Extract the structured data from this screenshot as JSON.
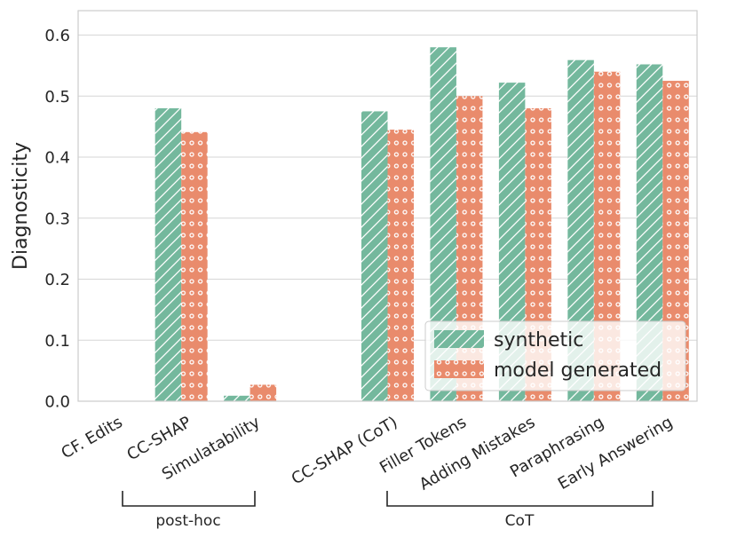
{
  "chart_data": {
    "type": "bar",
    "title": "",
    "xlabel": "",
    "ylabel": "Diagnosticity",
    "ylim": [
      0,
      0.64
    ],
    "yticks": [
      0.0,
      0.1,
      0.2,
      0.3,
      0.4,
      0.5,
      0.6
    ],
    "ytick_labels": [
      "0.0",
      "0.1",
      "0.2",
      "0.3",
      "0.4",
      "0.5",
      "0.6"
    ],
    "grid": true,
    "legend_position": "lower-right",
    "categories": [
      "CF. Edits",
      "CC-SHAP",
      "Simulatability",
      "CC-SHAP (CoT)",
      "Filler Tokens",
      "Adding Mistakes",
      "Paraphrasing",
      "Early Answering"
    ],
    "series": [
      {
        "name": "synthetic",
        "color": "#74b89d",
        "pattern": "diagonal-hatch",
        "values": [
          0.0,
          0.48,
          0.009,
          0.475,
          0.58,
          0.522,
          0.559,
          0.552
        ]
      },
      {
        "name": "model generated",
        "color": "#e98b6c",
        "pattern": "circles",
        "values": [
          0.0,
          0.441,
          0.027,
          0.445,
          0.5,
          0.48,
          0.54,
          0.525
        ]
      }
    ],
    "groups": [
      {
        "label": "post-hoc",
        "categories": [
          "CF. Edits",
          "CC-SHAP",
          "Simulatability"
        ]
      },
      {
        "label": "CoT",
        "categories": [
          "CC-SHAP (CoT)",
          "Filler Tokens",
          "Adding Mistakes",
          "Paraphrasing",
          "Early Answering"
        ]
      }
    ]
  }
}
